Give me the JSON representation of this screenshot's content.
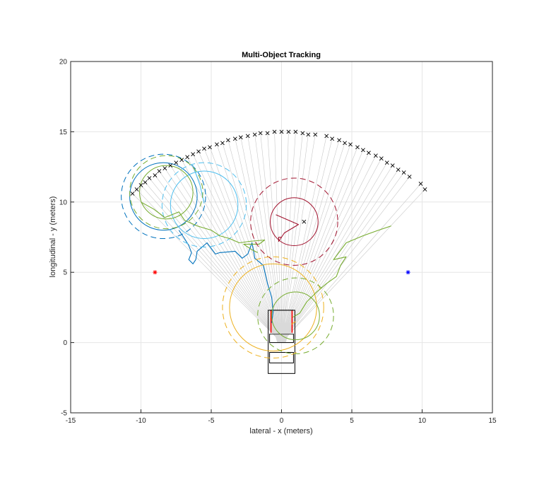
{
  "chart_data": {
    "type": "scatter",
    "title": "Multi-Object Tracking",
    "xlabel": "lateral - x (meters)",
    "ylabel": "longitudinal - y (meters)",
    "xlim": [
      -15,
      15
    ],
    "ylim": [
      -5,
      20
    ],
    "xticks": [
      "-15",
      "-10",
      "-5",
      "0",
      "5",
      "10",
      "15"
    ],
    "yticks": [
      "-5",
      "0",
      "5",
      "10",
      "15",
      "20"
    ],
    "grid": true,
    "sensor_origin": [
      0,
      0
    ],
    "beam_count": 60,
    "detections": {
      "marker": "x",
      "color": "#000000",
      "points": [
        [
          -10.6,
          10.6
        ],
        [
          -10.3,
          10.9
        ],
        [
          -10.0,
          11.2
        ],
        [
          -9.7,
          11.4
        ],
        [
          -9.4,
          11.7
        ],
        [
          -9.0,
          11.9
        ],
        [
          -8.7,
          12.2
        ],
        [
          -8.3,
          12.4
        ],
        [
          -7.9,
          12.6
        ],
        [
          -7.5,
          12.8
        ],
        [
          -7.1,
          13.0
        ],
        [
          -6.7,
          13.2
        ],
        [
          -6.3,
          13.4
        ],
        [
          -5.9,
          13.6
        ],
        [
          -5.5,
          13.8
        ],
        [
          -5.1,
          13.9
        ],
        [
          -4.6,
          14.1
        ],
        [
          -4.2,
          14.2
        ],
        [
          -3.8,
          14.4
        ],
        [
          -3.3,
          14.5
        ],
        [
          -2.9,
          14.6
        ],
        [
          -2.4,
          14.7
        ],
        [
          -1.9,
          14.8
        ],
        [
          -1.5,
          14.9
        ],
        [
          -1.0,
          14.9
        ],
        [
          -0.5,
          15.0
        ],
        [
          0.0,
          15.0
        ],
        [
          0.5,
          15.0
        ],
        [
          1.0,
          15.0
        ],
        [
          1.5,
          14.9
        ],
        [
          1.9,
          14.8
        ],
        [
          2.4,
          14.8
        ],
        [
          3.2,
          14.7
        ],
        [
          3.6,
          14.5
        ],
        [
          4.1,
          14.4
        ],
        [
          4.5,
          14.2
        ],
        [
          4.9,
          14.1
        ],
        [
          5.4,
          13.9
        ],
        [
          5.8,
          13.7
        ],
        [
          6.2,
          13.5
        ],
        [
          6.7,
          13.3
        ],
        [
          7.1,
          13.1
        ],
        [
          7.5,
          12.8
        ],
        [
          7.9,
          12.6
        ],
        [
          8.3,
          12.3
        ],
        [
          8.7,
          12.1
        ],
        [
          9.1,
          11.8
        ],
        [
          9.9,
          11.3
        ],
        [
          10.2,
          10.9
        ],
        [
          1.6,
          8.6
        ]
      ]
    },
    "stars": [
      {
        "x": -9,
        "y": 5,
        "color": "#ff0000"
      },
      {
        "x": 9,
        "y": 5,
        "color": "#0000ff"
      }
    ],
    "tracks": [
      {
        "color": "#0072BD",
        "circle_center": [
          -8.4,
          10.4
        ],
        "inner_radius": 2.4,
        "outer_radius": 3.0,
        "path": [
          [
            -7.3,
            8.0
          ],
          [
            -6.9,
            7.4
          ],
          [
            -6.6,
            6.9
          ],
          [
            -6.4,
            6.4
          ],
          [
            -6.6,
            5.9
          ],
          [
            -6.3,
            5.6
          ],
          [
            -6.1,
            5.9
          ],
          [
            -6.0,
            6.5
          ],
          [
            -5.3,
            7.1
          ],
          [
            -4.7,
            6.3
          ],
          [
            -4.4,
            6.4
          ],
          [
            -3.3,
            6.5
          ],
          [
            -3.0,
            6.2
          ],
          [
            -2.8,
            6.0
          ],
          [
            -2.4,
            6.3
          ],
          [
            -2.1,
            7.1
          ],
          [
            -1.9,
            6.0
          ],
          [
            -1.3,
            5.5
          ],
          [
            -1.0,
            4.2
          ],
          [
            -0.7,
            3.2
          ],
          [
            -0.6,
            2.2
          ],
          [
            -0.7,
            1.4
          ]
        ]
      },
      {
        "color": "#4DBEEE",
        "circle_center": [
          -5.5,
          9.8
        ],
        "inner_radius": 2.4,
        "outer_radius": 3.0,
        "path": [
          [
            -6.3,
            12.6
          ],
          [
            -5.8,
            11.2
          ],
          [
            -5.5,
            9.9
          ]
        ]
      },
      {
        "color": "#77AC30",
        "circle_center": [
          -8.2,
          10.7
        ],
        "inner_radius": 1.9,
        "outer_radius": 2.6,
        "path": [
          [
            -10.0,
            10.0
          ],
          [
            -9.1,
            9.5
          ],
          [
            -8.3,
            8.9
          ],
          [
            -7.3,
            9.3
          ],
          [
            -6.9,
            8.7
          ],
          [
            -6.0,
            8.3
          ],
          [
            -5.0,
            8.0
          ],
          [
            -4.4,
            7.6
          ],
          [
            -3.7,
            7.4
          ],
          [
            -3.0,
            7.1
          ],
          [
            -2.3,
            7.2
          ],
          [
            -1.2,
            7.3
          ],
          [
            -1.6,
            7.0
          ],
          [
            -2.7,
            7.0
          ],
          [
            -2.1,
            6.6
          ],
          [
            -1.7,
            6.4
          ]
        ]
      },
      {
        "color": "#A2142F",
        "circle_center": [
          0.9,
          8.6
        ],
        "inner_radius": 1.7,
        "outer_radius": 3.1,
        "path": [
          [
            -0.4,
            9.1
          ],
          [
            1.2,
            8.4
          ],
          [
            0.2,
            7.8
          ],
          [
            -0.2,
            7.2
          ],
          [
            -0.2,
            7.5
          ],
          [
            0.0,
            7.5
          ]
        ]
      },
      {
        "color": "#EDB120",
        "circle_center": [
          -0.6,
          2.5
        ],
        "inner_radius": 3.1,
        "outer_radius": 3.6,
        "path": [
          [
            0.7,
            1.3
          ],
          [
            1.0,
            1.5
          ]
        ]
      },
      {
        "color": "#77AC30",
        "circle_center": [
          1.0,
          1.9
        ],
        "inner_radius": 1.7,
        "outer_radius": 2.7,
        "path": [
          [
            0.8,
            1.8
          ],
          [
            1.3,
            2.1
          ],
          [
            1.8,
            2.9
          ],
          [
            2.5,
            3.6
          ],
          [
            3.2,
            4.2
          ],
          [
            3.9,
            4.7
          ],
          [
            4.2,
            5.5
          ],
          [
            4.6,
            6.1
          ],
          [
            3.7,
            5.9
          ],
          [
            4.6,
            7.1
          ],
          [
            5.8,
            7.6
          ],
          [
            6.9,
            8.0
          ],
          [
            7.8,
            8.3
          ]
        ]
      }
    ],
    "vehicle": {
      "color": "#000000",
      "accent": "#ff0000",
      "shading": "#d9d9d9"
    }
  }
}
